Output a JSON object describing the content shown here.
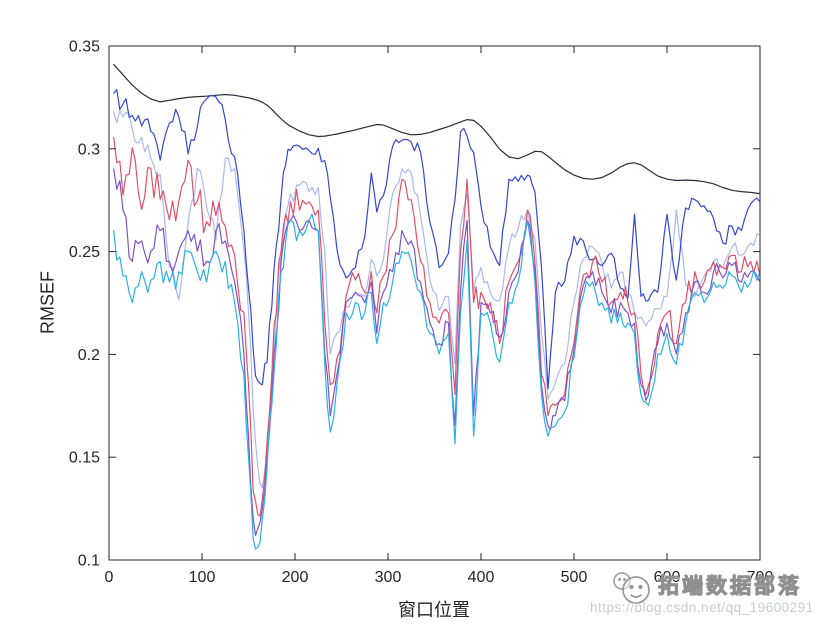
{
  "figure": {
    "background": "#ffffff",
    "axis_color": "#262626",
    "watermark": {
      "brand": "拓端数据部落",
      "url": "https://blog.csdn.net/qq_19600291",
      "logo": "panda-logo",
      "brand_color": "#8f8f8f",
      "url_color": "#c3cdd5"
    }
  },
  "chart_data": {
    "type": "line",
    "title": "",
    "xlabel": "窗口位置",
    "ylabel": "RMSEF",
    "xlim": [
      0,
      700
    ],
    "ylim": [
      0.1,
      0.35
    ],
    "xticks": [
      0,
      100,
      200,
      300,
      400,
      500,
      600,
      700
    ],
    "xtick_labels": [
      "0",
      "100",
      "200",
      "300",
      "400",
      "500",
      "600",
      "700"
    ],
    "yticks": [
      0.1,
      0.15,
      0.2,
      0.25,
      0.3,
      0.35
    ],
    "ytick_labels": [
      "0.1",
      "0.15",
      "0.2",
      "0.25",
      "0.3",
      "0.35"
    ],
    "grid": false,
    "legend": null,
    "box": true,
    "tick_dir": "in",
    "x": [
      5,
      15,
      25,
      35,
      45,
      55,
      65,
      75,
      85,
      95,
      105,
      115,
      125,
      135,
      145,
      150,
      155,
      160,
      165,
      170,
      175,
      180,
      185,
      190,
      195,
      205,
      215,
      225,
      232,
      238,
      245,
      255,
      265,
      275,
      282,
      288,
      295,
      305,
      315,
      325,
      335,
      345,
      355,
      365,
      372,
      378,
      385,
      392,
      400,
      410,
      420,
      430,
      440,
      450,
      458,
      465,
      472,
      480,
      490,
      500,
      510,
      520,
      530,
      540,
      550,
      558,
      565,
      572,
      580,
      590,
      600,
      610,
      620,
      630,
      640,
      650,
      660,
      670,
      680,
      690,
      700
    ],
    "series": [
      {
        "name": "series-lightblue",
        "color": "#aab9f0",
        "wiggle": 0.0035,
        "values": [
          0.318,
          0.3155,
          0.3095,
          0.3055,
          0.2955,
          0.2875,
          0.2425,
          0.2265,
          0.2645,
          0.2905,
          0.2715,
          0.2555,
          0.2955,
          0.2905,
          0.2505,
          0.2202,
          0.1732,
          0.1452,
          0.1352,
          0.1512,
          0.1882,
          0.2202,
          0.2482,
          0.2682,
          0.2782,
          0.2822,
          0.2792,
          0.2812,
          0.2502,
          0.2002,
          0.2102,
          0.2232,
          0.2302,
          0.2282,
          0.2462,
          0.2382,
          0.2462,
          0.2782,
          0.2902,
          0.2882,
          0.2672,
          0.2362,
          0.2212,
          0.2282,
          0.1955,
          0.2622,
          0.2782,
          0.2302,
          0.2422,
          0.2302,
          0.2262,
          0.2522,
          0.2612,
          0.2702,
          0.2562,
          0.2102,
          0.1782,
          0.1862,
          0.1955,
          0.2255,
          0.2465,
          0.2522,
          0.2442,
          0.2322,
          0.2402,
          0.2302,
          0.2202,
          0.2182,
          0.2162,
          0.2222,
          0.2282,
          0.2702,
          0.2342,
          0.2282,
          0.2382,
          0.2452,
          0.2422,
          0.2522,
          0.2482,
          0.2542,
          0.2582
        ]
      },
      {
        "name": "series-black",
        "color": "#222f3a",
        "wiggle": 0,
        "values": [
          0.341,
          0.336,
          0.331,
          0.327,
          0.3242,
          0.3228,
          0.3236,
          0.3244,
          0.325,
          0.3254,
          0.3256,
          0.326,
          0.3264,
          0.326,
          0.3252,
          0.3248,
          0.3242,
          0.3236,
          0.3226,
          0.3212,
          0.3192,
          0.3168,
          0.3146,
          0.3126,
          0.311,
          0.3086,
          0.3068,
          0.306,
          0.3062,
          0.3066,
          0.3072,
          0.3082,
          0.3092,
          0.3104,
          0.3112,
          0.3118,
          0.3116,
          0.3098,
          0.308,
          0.3068,
          0.307,
          0.308,
          0.3094,
          0.3108,
          0.312,
          0.313,
          0.3142,
          0.3138,
          0.311,
          0.3058,
          0.2998,
          0.296,
          0.2952,
          0.297,
          0.2988,
          0.2986,
          0.2964,
          0.2934,
          0.2898,
          0.2872,
          0.2856,
          0.2852,
          0.286,
          0.2882,
          0.2912,
          0.2928,
          0.2932,
          0.2922,
          0.2898,
          0.2868,
          0.2852,
          0.2846,
          0.2848,
          0.2846,
          0.284,
          0.283,
          0.2812,
          0.2798,
          0.2792,
          0.2788,
          0.2782
        ]
      },
      {
        "name": "series-blue",
        "color": "#3348d1",
        "wiggle": 0.0035,
        "values": [
          0.327,
          0.3218,
          0.3162,
          0.3112,
          0.3085,
          0.2945,
          0.3125,
          0.3155,
          0.2975,
          0.3105,
          0.3242,
          0.3252,
          0.3142,
          0.2962,
          0.2602,
          0.2322,
          0.2022,
          0.1872,
          0.1852,
          0.1962,
          0.2232,
          0.2532,
          0.2762,
          0.2922,
          0.2992,
          0.3012,
          0.2992,
          0.3002,
          0.2942,
          0.2762,
          0.2512,
          0.2372,
          0.2422,
          0.2572,
          0.2882,
          0.2692,
          0.2772,
          0.3012,
          0.3042,
          0.3032,
          0.2982,
          0.2642,
          0.2422,
          0.2492,
          0.2752,
          0.3082,
          0.3062,
          0.2982,
          0.2722,
          0.2522,
          0.2432,
          0.2852,
          0.2842,
          0.2872,
          0.2792,
          0.2422,
          0.1832,
          0.2302,
          0.2355,
          0.2575,
          0.2552,
          0.2462,
          0.2432,
          0.2492,
          0.2322,
          0.2272,
          0.2682,
          0.2282,
          0.2262,
          0.2302,
          0.2682,
          0.2362,
          0.2712,
          0.2752,
          0.2722,
          0.2662,
          0.2542,
          0.2622,
          0.2602,
          0.2732,
          0.2742
        ]
      },
      {
        "name": "series-red",
        "color": "#e15166",
        "wiggle": 0.0065,
        "values": [
          0.3055,
          0.2775,
          0.3005,
          0.2705,
          0.2905,
          0.2755,
          0.2655,
          0.2745,
          0.2945,
          0.2745,
          0.2645,
          0.2675,
          0.2625,
          0.2485,
          0.2205,
          0.1852,
          0.1332,
          0.1222,
          0.1302,
          0.1582,
          0.1902,
          0.2202,
          0.2502,
          0.2682,
          0.2742,
          0.2702,
          0.2742,
          0.2702,
          0.2152,
          0.1852,
          0.1982,
          0.2282,
          0.2362,
          0.2302,
          0.2402,
          0.2202,
          0.2382,
          0.2582,
          0.2852,
          0.2752,
          0.2452,
          0.2252,
          0.2152,
          0.2202,
          0.1805,
          0.2502,
          0.2852,
          0.2252,
          0.2302,
          0.2252,
          0.2052,
          0.2352,
          0.2452,
          0.2702,
          0.2452,
          0.1902,
          0.1702,
          0.1752,
          0.1805,
          0.2055,
          0.2385,
          0.2452,
          0.2352,
          0.2252,
          0.2302,
          0.2252,
          0.2202,
          0.1902,
          0.1852,
          0.2102,
          0.2202,
          0.2052,
          0.2252,
          0.2402,
          0.2352,
          0.2452,
          0.2422,
          0.2482,
          0.2402,
          0.2452,
          0.2382
        ]
      },
      {
        "name": "series-purple",
        "color": "#7e53c8",
        "wiggle": 0.0055,
        "values": [
          0.2902,
          0.2702,
          0.2452,
          0.2552,
          0.2502,
          0.2602,
          0.2452,
          0.2502,
          0.2602,
          0.2502,
          0.2452,
          0.2602,
          0.2552,
          0.2352,
          0.2002,
          0.1602,
          0.1202,
          0.1152,
          0.1252,
          0.1502,
          0.1802,
          0.2102,
          0.2452,
          0.2602,
          0.2652,
          0.2602,
          0.2652,
          0.2602,
          0.2002,
          0.1702,
          0.1902,
          0.2252,
          0.2302,
          0.2252,
          0.2352,
          0.2102,
          0.2302,
          0.2402,
          0.2602,
          0.2552,
          0.2352,
          0.2152,
          0.2052,
          0.2152,
          0.1655,
          0.2302,
          0.2652,
          0.1702,
          0.2252,
          0.2202,
          0.2082,
          0.2302,
          0.2402,
          0.2652,
          0.2402,
          0.1852,
          0.1652,
          0.1702,
          0.1775,
          0.2025,
          0.2335,
          0.2402,
          0.2302,
          0.2202,
          0.2252,
          0.2202,
          0.2152,
          0.1852,
          0.1802,
          0.2052,
          0.2152,
          0.2002,
          0.2202,
          0.2352,
          0.2302,
          0.2402,
          0.2372,
          0.2432,
          0.2352,
          0.2402,
          0.2352
        ]
      },
      {
        "name": "series-cyan",
        "color": "#2cb0e8",
        "wiggle": 0.0055,
        "values": [
          0.2602,
          0.2382,
          0.2252,
          0.2402,
          0.2362,
          0.2452,
          0.2352,
          0.2402,
          0.2502,
          0.2402,
          0.2352,
          0.2502,
          0.2452,
          0.2252,
          0.1902,
          0.1502,
          0.1102,
          0.1062,
          0.1202,
          0.1452,
          0.1752,
          0.2052,
          0.2402,
          0.2552,
          0.2652,
          0.2602,
          0.2652,
          0.2602,
          0.1952,
          0.1622,
          0.1852,
          0.2202,
          0.2252,
          0.2202,
          0.2302,
          0.2052,
          0.2252,
          0.2352,
          0.2502,
          0.2452,
          0.2302,
          0.2102,
          0.2002,
          0.2102,
          0.1565,
          0.2202,
          0.2552,
          0.1602,
          0.2202,
          0.2152,
          0.1962,
          0.2252,
          0.2352,
          0.2652,
          0.2352,
          0.1802,
          0.1602,
          0.1652,
          0.1722,
          0.1985,
          0.2285,
          0.2352,
          0.2252,
          0.2152,
          0.2202,
          0.2152,
          0.2102,
          0.1802,
          0.1752,
          0.2002,
          0.2102,
          0.1952,
          0.2152,
          0.2302,
          0.2252,
          0.2352,
          0.2322,
          0.2382,
          0.2302,
          0.2352,
          0.2402
        ]
      }
    ]
  }
}
